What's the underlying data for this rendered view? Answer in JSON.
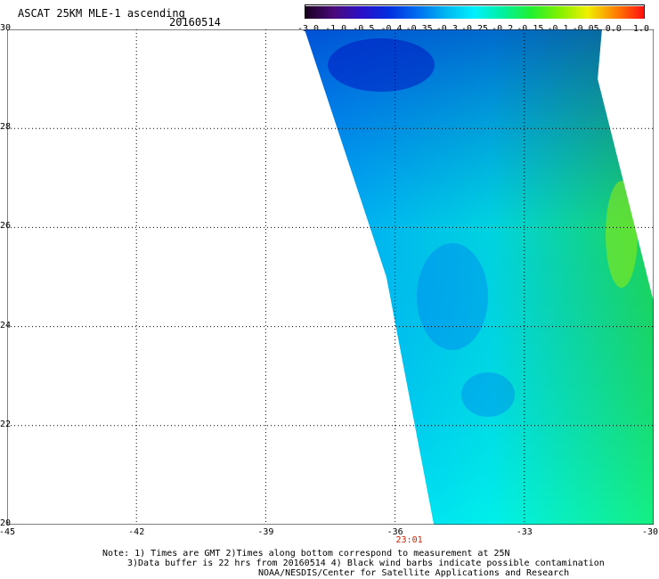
{
  "header": {
    "title": "ASCAT 25KM MLE-1 ascending",
    "date": "20160514"
  },
  "colorbar": {
    "labels": [
      "-3.0",
      "-1.0",
      "-0.5",
      "-0.4",
      "-0.35",
      "-0.3",
      "-0.25",
      "-0.2",
      "-0.15",
      "-0.1",
      "-0.05",
      "0.0",
      "1.0"
    ],
    "colors": [
      "#1a0020",
      "#4a0a7a",
      "#2a10c8",
      "#0030e0",
      "#0070f0",
      "#00b8f0",
      "#00f0ff",
      "#00f0a0",
      "#20f030",
      "#80f000",
      "#f0f000",
      "#ff8000",
      "#ff1010"
    ]
  },
  "map": {
    "lon_ticks": [
      "-45",
      "-42",
      "-39",
      "-36",
      "-33",
      "-30"
    ],
    "lat_ticks": [
      "20",
      "22",
      "24",
      "26",
      "28",
      "30"
    ],
    "lon_range": [
      -45,
      -30
    ],
    "lat_range": [
      20,
      30
    ],
    "time_label": "23:01",
    "time_label_lon": -36,
    "swath_polygon": [
      [
        -38.1,
        30
      ],
      [
        -36.2,
        25
      ],
      [
        -35.1,
        20
      ],
      [
        -30,
        20
      ],
      [
        -30,
        24.5
      ],
      [
        -31.3,
        29
      ],
      [
        -31.2,
        30
      ]
    ]
  },
  "notes": {
    "line1": "Note: 1) Times are GMT 2)Times along bottom correspond to measurement at 25N",
    "line2": "3)Data buffer is 22 hrs from 20160514 4) Black wind barbs indicate possible contamination",
    "line3": "NOAA/NESDIS/Center for Satellite Applications and Research"
  }
}
